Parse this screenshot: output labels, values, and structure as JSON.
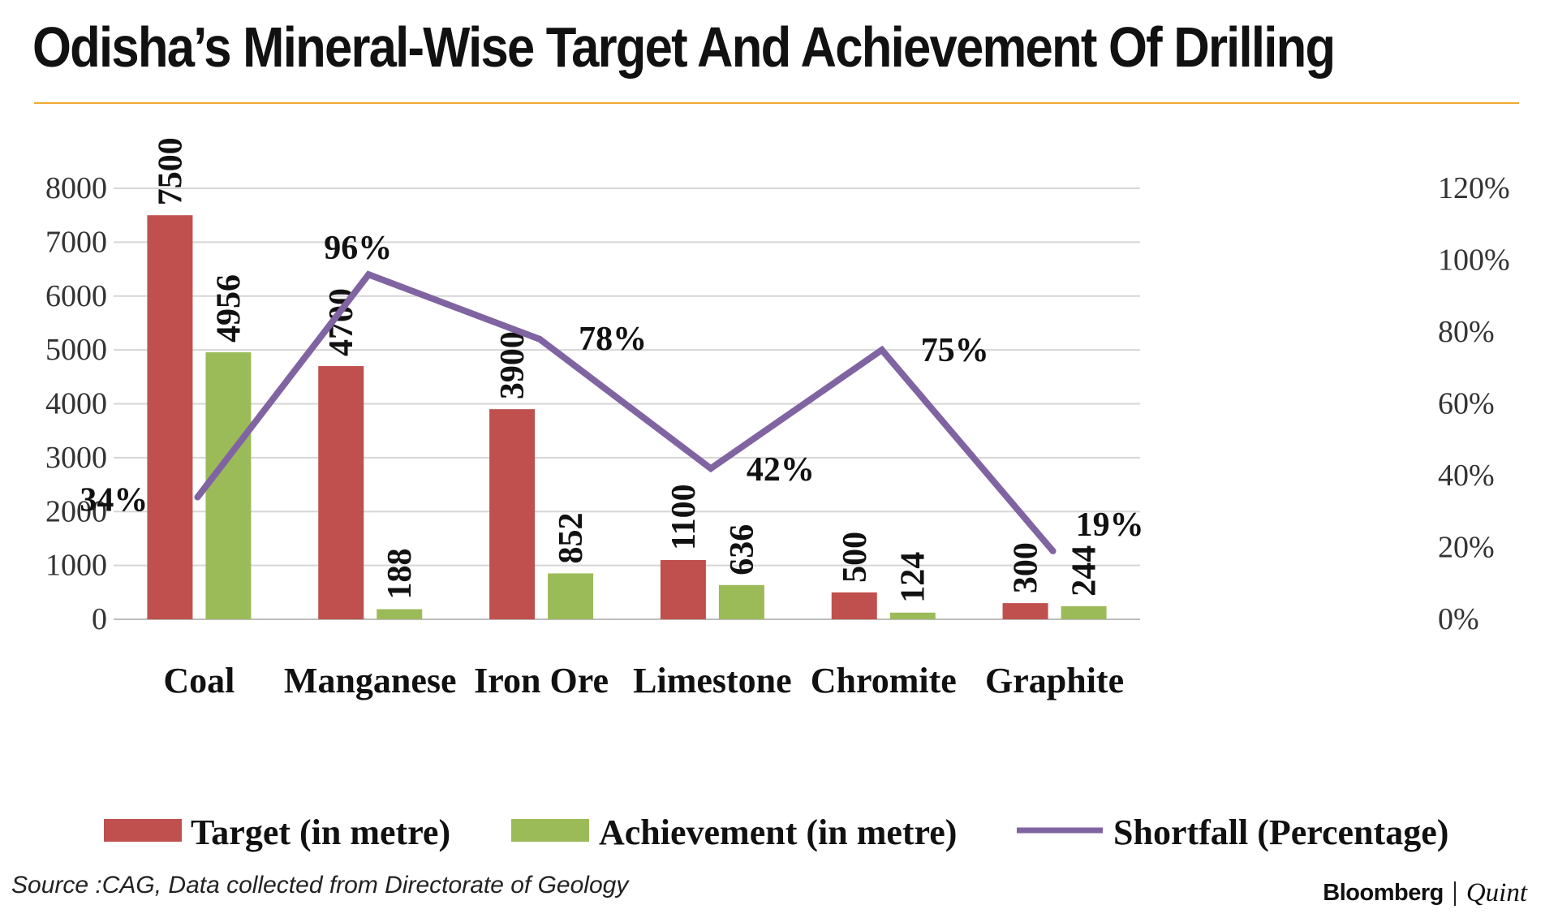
{
  "header": {
    "title": "Odisha’s Mineral-Wise Target And Achievement Of Drilling"
  },
  "footer": {
    "source": "Source :CAG, Data collected from Directorate of Geology",
    "brand_primary": "Bloomberg",
    "brand_secondary": "Quint"
  },
  "colors": {
    "target": "#c0504d",
    "achievement": "#9bbb59",
    "shortfall": "#8064a2",
    "accent_rule": "#f0a830"
  },
  "chart_data": {
    "type": "bar",
    "title": "Odisha’s Mineral-Wise Target And Achievement Of Drilling",
    "categories": [
      "Coal",
      "Manganese",
      "Iron Ore",
      "Limestone",
      "Chromite",
      "Graphite"
    ],
    "series": [
      {
        "name": "Target (in metre)",
        "type": "bar",
        "axis": "left",
        "values": [
          7500,
          4700,
          3900,
          1100,
          500,
          300
        ],
        "labels": [
          "7500",
          "4700",
          "3900",
          "1100",
          "500",
          "300"
        ]
      },
      {
        "name": "Achievement (in metre)",
        "type": "bar",
        "axis": "left",
        "values": [
          4956,
          188,
          852,
          636,
          124,
          244
        ],
        "labels": [
          "4956",
          "188",
          "852",
          "636",
          "124",
          "244"
        ]
      },
      {
        "name": "Shortfall (Percentage)",
        "type": "line",
        "axis": "right",
        "values": [
          34,
          96,
          78,
          42,
          75,
          19
        ],
        "labels": [
          "34%",
          "96%",
          "78%",
          "42%",
          "75%",
          "19%"
        ]
      }
    ],
    "legend": [
      "Target (in metre)",
      "Achievement (in metre)",
      "Shortfall (Percentage)"
    ],
    "legend_labels": [
      "Target (in metre)",
      "Achievement (in metre)",
      "Shortfall (Percentage)"
    ],
    "ylim": [
      0,
      8000
    ],
    "yticks": [
      0,
      1000,
      2000,
      3000,
      4000,
      5000,
      6000,
      7000,
      8000
    ],
    "ytick_labels": [
      "0",
      "1000",
      "2000",
      "3000",
      "4000",
      "5000",
      "6000",
      "7000",
      "8000"
    ],
    "y2lim": [
      0,
      120
    ],
    "y2ticks": [
      0,
      20,
      40,
      60,
      80,
      100,
      120
    ],
    "y2tick_labels": [
      "0%",
      "20%",
      "40%",
      "60%",
      "80%",
      "100%",
      "120%"
    ],
    "grid": true,
    "legend_position": "bottom"
  }
}
